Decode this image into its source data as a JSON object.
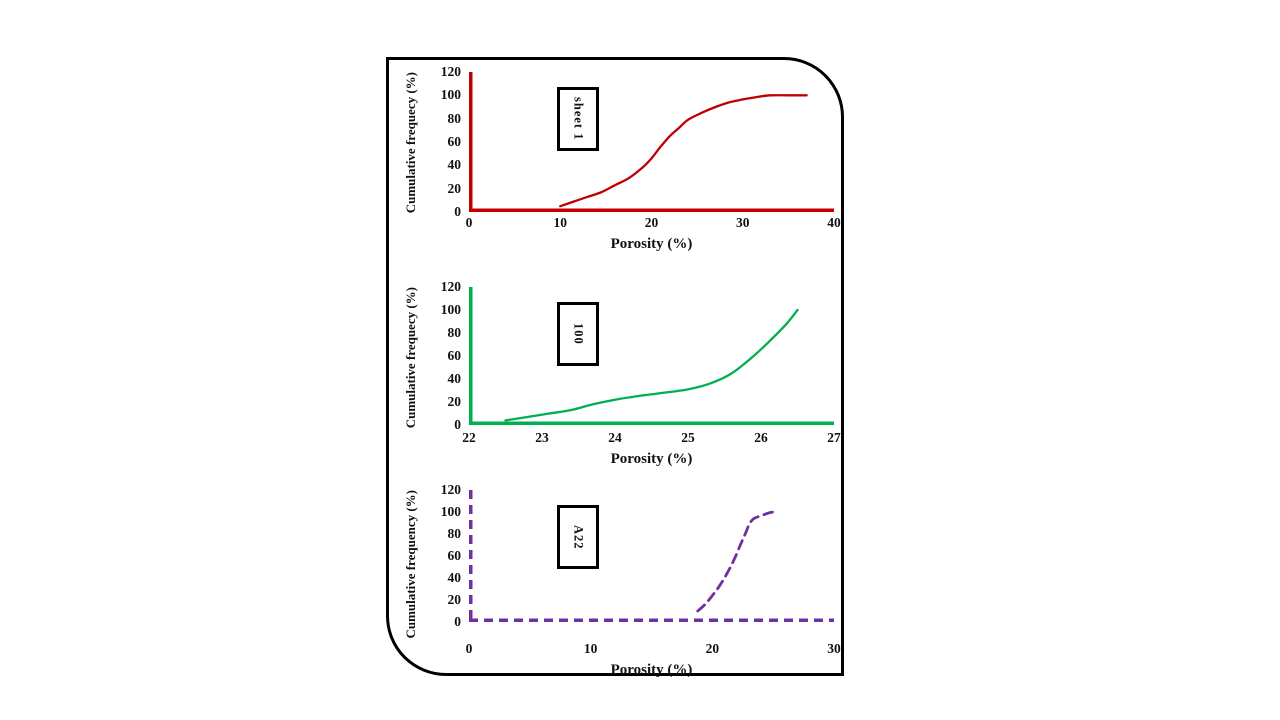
{
  "figure": {
    "xlabel_shared": "Porosity (%)"
  },
  "chart_data": [
    {
      "type": "line",
      "legend": "sheet 1",
      "series_color": "#c00000",
      "line_style": "solid",
      "xlabel": "Porosity (%)",
      "ylabel": "Cumulative frequecy (%)",
      "xlim": [
        0,
        40
      ],
      "ylim": [
        0,
        120
      ],
      "xticks": [
        0,
        10,
        20,
        30,
        40
      ],
      "yticks": [
        0,
        20,
        40,
        60,
        80,
        100,
        120
      ],
      "grid": false,
      "legend_position": "upper-left-box",
      "x": [
        10,
        11.5,
        13,
        14.5,
        16,
        17.5,
        19,
        20,
        21,
        22,
        23,
        24,
        25.5,
        27,
        28.5,
        30,
        31.5,
        33,
        35,
        37
      ],
      "y": [
        5,
        9,
        13,
        17,
        23,
        29,
        38,
        46,
        56,
        65,
        72,
        79,
        85,
        90,
        94,
        96.5,
        98.5,
        100,
        100,
        100
      ]
    },
    {
      "type": "line",
      "legend": "100",
      "series_color": "#00b050",
      "line_style": "solid",
      "xlabel": "Porosity (%)",
      "ylabel": "Cumulative frequecy (%)",
      "xlim": [
        22,
        27
      ],
      "ylim": [
        0,
        120
      ],
      "xticks": [
        22,
        23,
        24,
        25,
        26,
        27
      ],
      "yticks": [
        0,
        20,
        40,
        60,
        80,
        100,
        120
      ],
      "grid": false,
      "legend_position": "upper-left-box",
      "x": [
        22.5,
        22.8,
        23.1,
        23.4,
        23.7,
        24,
        24.3,
        24.6,
        25,
        25.3,
        25.6,
        25.9,
        26.15,
        26.35,
        26.5
      ],
      "y": [
        4,
        7,
        10,
        13,
        18,
        22,
        25,
        27.5,
        31,
        36,
        45,
        60,
        75,
        88,
        100
      ]
    },
    {
      "type": "line",
      "legend": "A22",
      "series_color": "#7030a0",
      "line_style": "dashed",
      "xlabel": "Porosity (%)",
      "ylabel": "Cumulative frequency (%)",
      "xlim": [
        0,
        30
      ],
      "ylim": [
        0,
        120
      ],
      "xticks": [
        0,
        10,
        20,
        30
      ],
      "yticks": [
        0,
        20,
        40,
        60,
        80,
        100,
        120
      ],
      "grid": false,
      "legend_position": "upper-left-box",
      "x": [
        18.8,
        19.4,
        20,
        20.6,
        21.2,
        21.8,
        22.3,
        22.7,
        23,
        23.3,
        23.6,
        24.1,
        24.6,
        25
      ],
      "y": [
        10,
        16,
        24,
        33,
        44,
        57,
        70,
        80,
        88,
        93,
        95,
        97,
        99,
        100
      ]
    }
  ]
}
